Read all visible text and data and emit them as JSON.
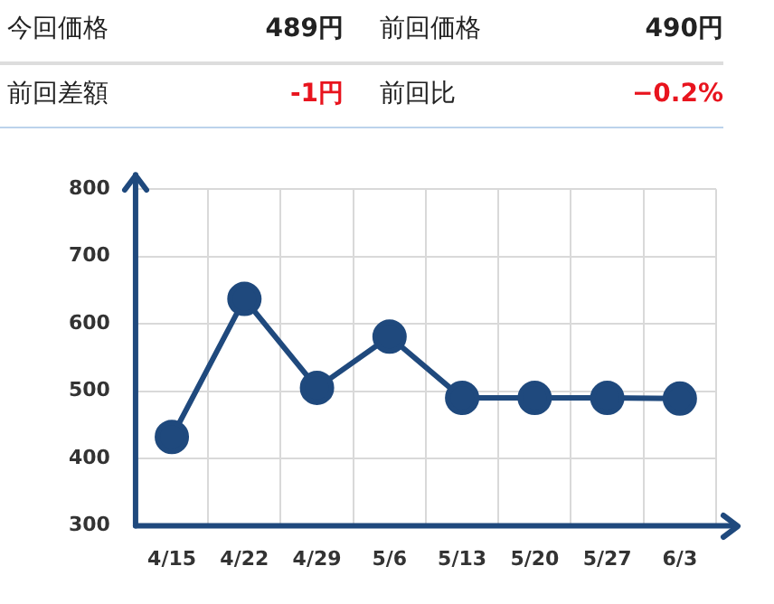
{
  "chart_data": {
    "type": "line",
    "annotations": [
      "今回価格",
      "489円",
      "前回価格",
      "490円",
      "前回差額",
      "-1円",
      "前回比",
      "−0.2%"
    ],
    "categories": [
      "4/15",
      "4/22",
      "4/29",
      "5/6",
      "5/13",
      "5/20",
      "5/27",
      "6/3"
    ],
    "series": [
      {
        "color": "#1f497d",
        "values": [
          432,
          637,
          505,
          581,
          490,
          490,
          490,
          489
        ]
      }
    ],
    "ylim": [
      300,
      800
    ],
    "yticks": [
      300,
      400,
      500,
      600,
      700,
      800
    ],
    "grid": true,
    "legend": false,
    "marker": "circle",
    "line_style": "solid"
  }
}
